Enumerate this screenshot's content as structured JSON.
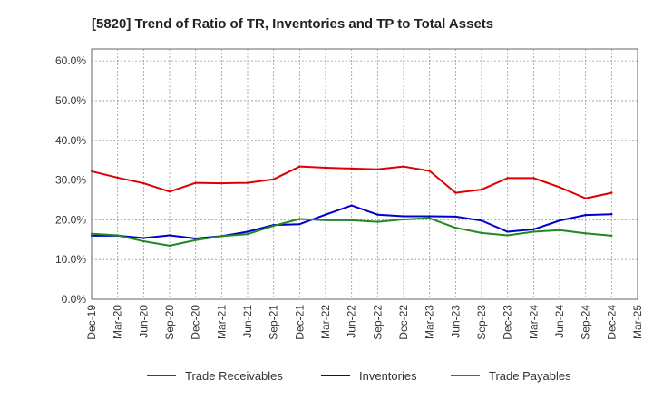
{
  "chart_data": {
    "type": "line",
    "title": "[5820]  Trend of Ratio of TR, Inventories and TP to Total Assets",
    "x_ticks": [
      "Dec-19",
      "Mar-20",
      "Jun-20",
      "Sep-20",
      "Dec-20",
      "Mar-21",
      "Jun-21",
      "Sep-21",
      "Dec-21",
      "Mar-22",
      "Jun-22",
      "Sep-22",
      "Dec-22",
      "Mar-23",
      "Jun-23",
      "Sep-23",
      "Dec-23",
      "Mar-24",
      "Jun-24",
      "Sep-24",
      "Dec-24",
      "Mar-25"
    ],
    "x": [
      "Dec-19",
      "Mar-20",
      "Jun-20",
      "Sep-20",
      "Dec-20",
      "Mar-21",
      "Jun-21",
      "Sep-21",
      "Dec-21",
      "Mar-22",
      "Jun-22",
      "Sep-22",
      "Dec-22",
      "Mar-23",
      "Jun-23",
      "Sep-23",
      "Dec-23",
      "Mar-24",
      "Jun-24",
      "Sep-24",
      "Dec-24"
    ],
    "y_ticks": [
      "0.0%",
      "10.0%",
      "20.0%",
      "30.0%",
      "40.0%",
      "50.0%",
      "60.0%"
    ],
    "ylim": [
      0,
      63
    ],
    "grid": true,
    "legend_position": "bottom",
    "series": [
      {
        "name": "Trade Receivables",
        "color": "#dd0000",
        "values": [
          32.2,
          30.6,
          29.2,
          27.1,
          29.3,
          29.2,
          29.3,
          30.2,
          33.4,
          33.1,
          32.9,
          32.7,
          33.4,
          32.3,
          26.8,
          27.6,
          30.5,
          30.5,
          28.2,
          25.4,
          26.8
        ]
      },
      {
        "name": "Inventories",
        "color": "#0000cc",
        "values": [
          16.0,
          16.0,
          15.4,
          16.1,
          15.3,
          15.9,
          17.0,
          18.7,
          18.9,
          21.3,
          23.6,
          21.3,
          20.9,
          20.9,
          20.8,
          19.8,
          17.0,
          17.6,
          19.8,
          21.2,
          21.4
        ]
      },
      {
        "name": "Trade Payables",
        "color": "#228822",
        "values": [
          16.5,
          16.1,
          14.6,
          13.5,
          14.9,
          15.9,
          16.4,
          18.5,
          20.2,
          19.9,
          19.9,
          19.5,
          20.1,
          20.4,
          18.0,
          16.7,
          16.1,
          17.0,
          17.4,
          16.6,
          16.0
        ]
      }
    ]
  }
}
